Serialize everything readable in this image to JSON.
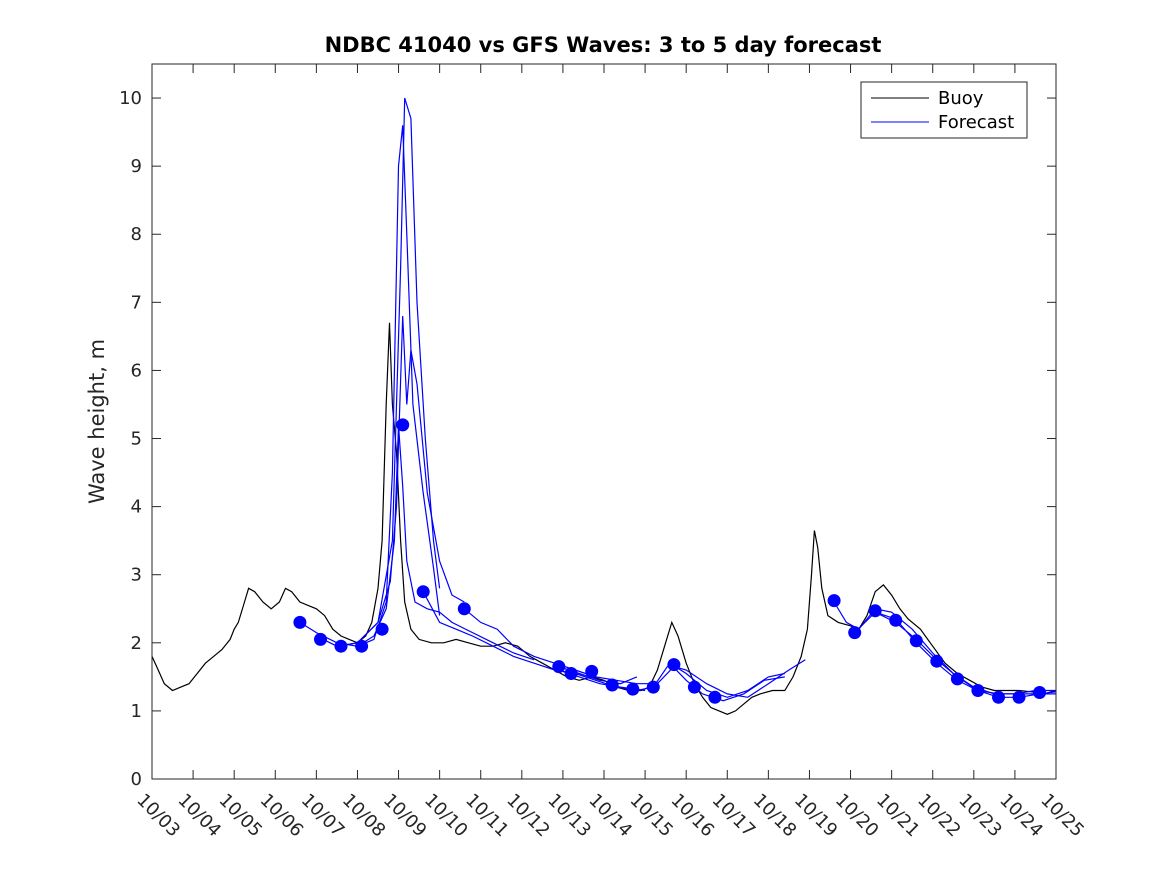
{
  "chart_data": {
    "type": "line",
    "title": "NDBC 41040 vs GFS Waves: 3 to 5 day forecast",
    "xlabel": "",
    "ylabel": "Wave height, m",
    "xlim": [
      0,
      22
    ],
    "ylim": [
      0,
      10.5
    ],
    "x_tick_labels": [
      "10/03",
      "10/04",
      "10/05",
      "10/06",
      "10/07",
      "10/08",
      "10/09",
      "10/10",
      "10/11",
      "10/12",
      "10/13",
      "10/14",
      "10/15",
      "10/16",
      "10/17",
      "10/18",
      "10/19",
      "10/20",
      "10/21",
      "10/22",
      "10/23",
      "10/24",
      "10/25"
    ],
    "y_ticks": [
      0,
      1,
      2,
      3,
      4,
      5,
      6,
      7,
      8,
      9,
      10
    ],
    "grid": false,
    "legend_position": "top-right",
    "colors": {
      "buoy": "#000000",
      "forecast": "#0000ff",
      "axis": "#262626"
    },
    "series": [
      {
        "name": "Buoy",
        "color": "#000000",
        "points": [
          [
            0,
            1.8
          ],
          [
            0.15,
            1.6
          ],
          [
            0.3,
            1.4
          ],
          [
            0.5,
            1.3
          ],
          [
            0.7,
            1.35
          ],
          [
            0.9,
            1.4
          ],
          [
            1.1,
            1.55
          ],
          [
            1.3,
            1.7
          ],
          [
            1.5,
            1.8
          ],
          [
            1.7,
            1.9
          ],
          [
            1.9,
            2.05
          ],
          [
            2.0,
            2.2
          ],
          [
            2.1,
            2.3
          ],
          [
            2.25,
            2.6
          ],
          [
            2.35,
            2.8
          ],
          [
            2.5,
            2.75
          ],
          [
            2.7,
            2.6
          ],
          [
            2.9,
            2.5
          ],
          [
            3.1,
            2.6
          ],
          [
            3.25,
            2.8
          ],
          [
            3.4,
            2.75
          ],
          [
            3.6,
            2.6
          ],
          [
            3.8,
            2.55
          ],
          [
            4.0,
            2.5
          ],
          [
            4.2,
            2.4
          ],
          [
            4.4,
            2.2
          ],
          [
            4.6,
            2.1
          ],
          [
            4.8,
            2.05
          ],
          [
            5.0,
            2.0
          ],
          [
            5.2,
            2.1
          ],
          [
            5.35,
            2.3
          ],
          [
            5.5,
            2.8
          ],
          [
            5.6,
            3.5
          ],
          [
            5.7,
            5.5
          ],
          [
            5.78,
            6.7
          ],
          [
            5.85,
            5.5
          ],
          [
            5.95,
            4.8
          ],
          [
            6.05,
            3.5
          ],
          [
            6.15,
            2.6
          ],
          [
            6.3,
            2.2
          ],
          [
            6.5,
            2.05
          ],
          [
            6.8,
            2.0
          ],
          [
            7.1,
            2.0
          ],
          [
            7.4,
            2.05
          ],
          [
            7.7,
            2.0
          ],
          [
            8.0,
            1.95
          ],
          [
            8.3,
            1.95
          ],
          [
            8.6,
            2.0
          ],
          [
            8.9,
            1.95
          ],
          [
            9.2,
            1.8
          ],
          [
            9.5,
            1.7
          ],
          [
            9.8,
            1.6
          ],
          [
            10.1,
            1.5
          ],
          [
            10.4,
            1.45
          ],
          [
            10.7,
            1.5
          ],
          [
            11.0,
            1.45
          ],
          [
            11.3,
            1.35
          ],
          [
            11.6,
            1.3
          ],
          [
            11.9,
            1.3
          ],
          [
            12.1,
            1.35
          ],
          [
            12.3,
            1.6
          ],
          [
            12.5,
            2.0
          ],
          [
            12.65,
            2.3
          ],
          [
            12.8,
            2.1
          ],
          [
            13.0,
            1.7
          ],
          [
            13.2,
            1.4
          ],
          [
            13.4,
            1.2
          ],
          [
            13.6,
            1.05
          ],
          [
            13.8,
            1.0
          ],
          [
            14.0,
            0.95
          ],
          [
            14.2,
            1.0
          ],
          [
            14.4,
            1.1
          ],
          [
            14.6,
            1.2
          ],
          [
            14.8,
            1.25
          ],
          [
            15.1,
            1.3
          ],
          [
            15.4,
            1.3
          ],
          [
            15.6,
            1.5
          ],
          [
            15.8,
            1.8
          ],
          [
            15.95,
            2.2
          ],
          [
            16.05,
            3.0
          ],
          [
            16.12,
            3.65
          ],
          [
            16.2,
            3.4
          ],
          [
            16.3,
            2.8
          ],
          [
            16.45,
            2.4
          ],
          [
            16.7,
            2.3
          ],
          [
            17.0,
            2.25
          ],
          [
            17.2,
            2.2
          ],
          [
            17.4,
            2.4
          ],
          [
            17.6,
            2.75
          ],
          [
            17.8,
            2.85
          ],
          [
            18.0,
            2.7
          ],
          [
            18.2,
            2.5
          ],
          [
            18.4,
            2.35
          ],
          [
            18.7,
            2.2
          ],
          [
            19.0,
            1.95
          ],
          [
            19.3,
            1.7
          ],
          [
            19.6,
            1.55
          ],
          [
            19.9,
            1.45
          ],
          [
            20.2,
            1.35
          ],
          [
            20.5,
            1.3
          ],
          [
            20.8,
            1.3
          ],
          [
            21.1,
            1.3
          ],
          [
            21.4,
            1.28
          ],
          [
            21.7,
            1.25
          ],
          [
            22.0,
            1.3
          ]
        ]
      },
      {
        "name": "Forecast",
        "color": "#0000ff",
        "lines": [
          [
            [
              3.6,
              2.3
            ],
            [
              4.0,
              2.15
            ],
            [
              4.5,
              2.0
            ],
            [
              5.0,
              1.95
            ],
            [
              5.4,
              2.05
            ],
            [
              5.7,
              2.6
            ],
            [
              5.85,
              4.5
            ],
            [
              6.0,
              9.0
            ],
            [
              6.1,
              9.6
            ],
            [
              6.2,
              8.0
            ],
            [
              6.35,
              5.5
            ],
            [
              6.6,
              4.2
            ],
            [
              6.85,
              3.1
            ],
            [
              7.0,
              2.4
            ]
          ],
          [
            [
              4.0,
              2.1
            ],
            [
              4.5,
              1.95
            ],
            [
              5.0,
              2.0
            ],
            [
              5.5,
              2.3
            ],
            [
              5.85,
              3.5
            ],
            [
              6.05,
              7.5
            ],
            [
              6.15,
              10.0
            ],
            [
              6.3,
              9.7
            ],
            [
              6.45,
              7.0
            ],
            [
              6.65,
              5.0
            ],
            [
              6.85,
              3.5
            ],
            [
              7.0,
              2.8
            ]
          ],
          [
            [
              4.5,
              1.95
            ],
            [
              5.0,
              2.0
            ],
            [
              5.5,
              2.3
            ],
            [
              5.8,
              2.9
            ],
            [
              5.95,
              4.0
            ],
            [
              6.1,
              6.8
            ],
            [
              6.2,
              5.5
            ],
            [
              6.3,
              6.3
            ],
            [
              6.45,
              5.8
            ],
            [
              6.7,
              4.2
            ],
            [
              7.0,
              3.2
            ],
            [
              7.3,
              2.7
            ],
            [
              7.6,
              2.6
            ]
          ],
          [
            [
              5.0,
              1.95
            ],
            [
              5.4,
              2.1
            ],
            [
              5.7,
              2.5
            ],
            [
              5.9,
              3.5
            ],
            [
              6.0,
              5.2
            ],
            [
              6.1,
              4.3
            ],
            [
              6.2,
              3.2
            ],
            [
              6.4,
              2.6
            ],
            [
              6.7,
              2.5
            ],
            [
              7.0,
              2.45
            ],
            [
              7.3,
              2.3
            ],
            [
              7.8,
              2.15
            ],
            [
              8.3,
              2.0
            ],
            [
              8.8,
              1.85
            ],
            [
              9.3,
              1.75
            ]
          ],
          [
            [
              6.6,
              2.75
            ],
            [
              7.0,
              2.3
            ],
            [
              7.4,
              2.2
            ],
            [
              7.8,
              2.1
            ],
            [
              8.3,
              1.95
            ],
            [
              8.8,
              1.8
            ],
            [
              9.3,
              1.7
            ],
            [
              9.8,
              1.6
            ],
            [
              10.3,
              1.55
            ],
            [
              10.8,
              1.45
            ],
            [
              11.3,
              1.35
            ],
            [
              11.8,
              1.3
            ],
            [
              12.2,
              1.35
            ],
            [
              12.6,
              1.7
            ],
            [
              13.0,
              1.55
            ],
            [
              13.5,
              1.3
            ],
            [
              14.0,
              1.2
            ],
            [
              14.5,
              1.3
            ],
            [
              15.0,
              1.5
            ],
            [
              15.4,
              1.55
            ]
          ],
          [
            [
              7.6,
              2.5
            ],
            [
              8.0,
              2.3
            ],
            [
              8.4,
              2.2
            ],
            [
              8.8,
              1.95
            ],
            [
              9.3,
              1.8
            ],
            [
              9.8,
              1.7
            ],
            [
              10.3,
              1.6
            ],
            [
              10.8,
              1.5
            ],
            [
              11.3,
              1.45
            ],
            [
              11.8,
              1.4
            ],
            [
              12.3,
              1.4
            ],
            [
              12.7,
              1.65
            ],
            [
              13.0,
              1.6
            ],
            [
              13.5,
              1.4
            ],
            [
              14.0,
              1.25
            ],
            [
              14.5,
              1.2
            ],
            [
              15.0,
              1.4
            ],
            [
              15.5,
              1.6
            ],
            [
              15.9,
              1.75
            ]
          ],
          [
            [
              9.9,
              1.65
            ],
            [
              10.4,
              1.55
            ],
            [
              10.9,
              1.45
            ],
            [
              11.4,
              1.4
            ],
            [
              11.8,
              1.5
            ]
          ],
          [
            [
              9.9,
              1.6
            ],
            [
              10.4,
              1.5
            ],
            [
              10.9,
              1.4
            ],
            [
              11.4,
              1.35
            ],
            [
              12.0,
              1.3
            ]
          ],
          [
            [
              12.6,
              1.7
            ],
            [
              13.0,
              1.45
            ],
            [
              13.4,
              1.25
            ],
            [
              13.9,
              1.15
            ],
            [
              14.4,
              1.25
            ],
            [
              14.9,
              1.45
            ],
            [
              15.4,
              1.5
            ]
          ],
          [
            [
              16.6,
              2.6
            ],
            [
              16.9,
              2.3
            ],
            [
              17.2,
              2.2
            ],
            [
              17.6,
              2.5
            ],
            [
              18.0,
              2.45
            ],
            [
              18.5,
              2.2
            ],
            [
              19.0,
              1.85
            ],
            [
              19.5,
              1.55
            ],
            [
              20.0,
              1.35
            ],
            [
              20.5,
              1.25
            ],
            [
              21.0,
              1.25
            ],
            [
              21.5,
              1.3
            ],
            [
              22.0,
              1.3
            ]
          ],
          [
            [
              17.1,
              2.15
            ],
            [
              17.6,
              2.45
            ],
            [
              18.1,
              2.3
            ],
            [
              18.6,
              2.05
            ],
            [
              19.1,
              1.75
            ],
            [
              19.6,
              1.5
            ],
            [
              20.1,
              1.3
            ],
            [
              20.6,
              1.2
            ],
            [
              21.1,
              1.2
            ],
            [
              21.6,
              1.25
            ],
            [
              22.0,
              1.28
            ]
          ],
          [
            [
              17.6,
              2.45
            ],
            [
              18.1,
              2.35
            ],
            [
              18.6,
              2.0
            ],
            [
              19.1,
              1.7
            ],
            [
              19.6,
              1.45
            ],
            [
              20.1,
              1.3
            ],
            [
              20.6,
              1.25
            ],
            [
              21.1,
              1.25
            ],
            [
              21.6,
              1.25
            ],
            [
              22.0,
              1.25
            ]
          ]
        ],
        "markers": [
          [
            3.6,
            2.3
          ],
          [
            4.1,
            2.05
          ],
          [
            4.6,
            1.95
          ],
          [
            5.1,
            1.95
          ],
          [
            5.6,
            2.2
          ],
          [
            6.1,
            5.2
          ],
          [
            6.6,
            2.75
          ],
          [
            7.6,
            2.5
          ],
          [
            9.9,
            1.65
          ],
          [
            10.2,
            1.55
          ],
          [
            10.7,
            1.58
          ],
          [
            11.2,
            1.38
          ],
          [
            11.7,
            1.32
          ],
          [
            12.2,
            1.35
          ],
          [
            12.7,
            1.68
          ],
          [
            13.2,
            1.35
          ],
          [
            13.7,
            1.2
          ],
          [
            16.6,
            2.62
          ],
          [
            17.1,
            2.15
          ],
          [
            17.6,
            2.47
          ],
          [
            18.1,
            2.33
          ],
          [
            18.6,
            2.03
          ],
          [
            19.1,
            1.73
          ],
          [
            19.6,
            1.47
          ],
          [
            20.1,
            1.3
          ],
          [
            20.6,
            1.2
          ],
          [
            21.1,
            1.2
          ],
          [
            21.6,
            1.27
          ]
        ]
      }
    ]
  }
}
